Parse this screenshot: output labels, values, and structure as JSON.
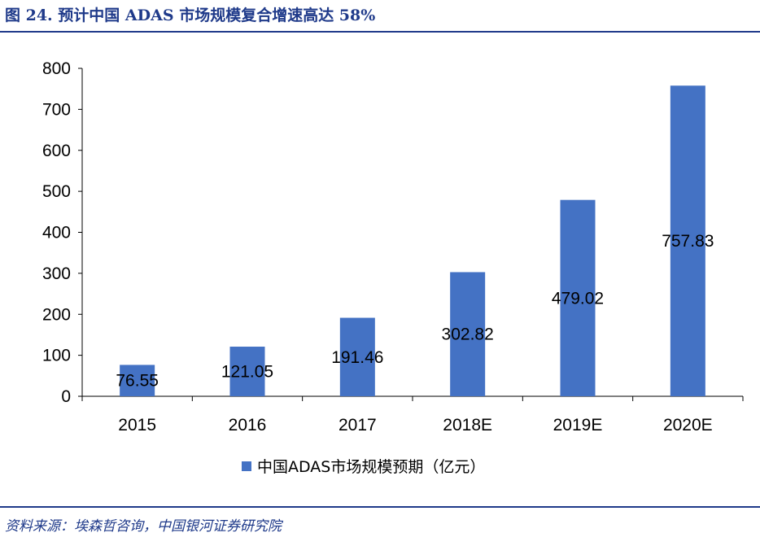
{
  "figure": {
    "title": "图 24. 预计中国 ADAS 市场规模复合增速高达 58%",
    "source": "资料来源：埃森哲咨询，中国银河证券研究院"
  },
  "chart_data": {
    "type": "bar",
    "categories": [
      "2015",
      "2016",
      "2017",
      "2018E",
      "2019E",
      "2020E"
    ],
    "series": [
      {
        "name": "中国ADAS市场规模预期（亿元）",
        "values": [
          76.55,
          121.05,
          191.46,
          302.82,
          479.02,
          757.83
        ],
        "labels": [
          "76.55",
          "121.05",
          "191.46",
          "302.82",
          "479.02",
          "757.83"
        ],
        "color": "#4472C4"
      }
    ],
    "title": "",
    "xlabel": "",
    "ylabel": "",
    "ylim": [
      0,
      800
    ],
    "yticks": [
      0,
      100,
      200,
      300,
      400,
      500,
      600,
      700,
      800
    ],
    "grid": false,
    "legend": "bottom"
  }
}
